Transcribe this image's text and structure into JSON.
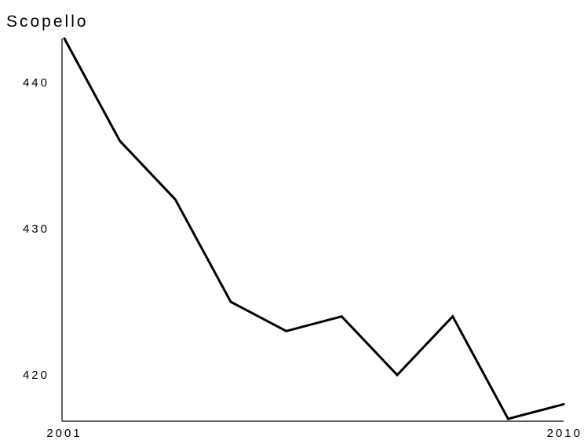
{
  "chart_data": {
    "type": "line",
    "title": "Scopello",
    "xlabel": "",
    "ylabel": "",
    "x": [
      2001,
      2002,
      2003,
      2004,
      2005,
      2006,
      2007,
      2008,
      2009,
      2010
    ],
    "values": [
      443,
      436,
      432,
      425,
      423,
      424,
      420,
      424,
      417,
      418
    ],
    "xlim": [
      2001,
      2010
    ],
    "ylim": [
      417,
      443
    ],
    "x_tick_labels": [
      "2001",
      "2010"
    ],
    "y_ticks": [
      420,
      430,
      440
    ],
    "y_tick_labels": [
      "420",
      "430",
      "440"
    ],
    "grid": false,
    "line_color": "#000000"
  }
}
